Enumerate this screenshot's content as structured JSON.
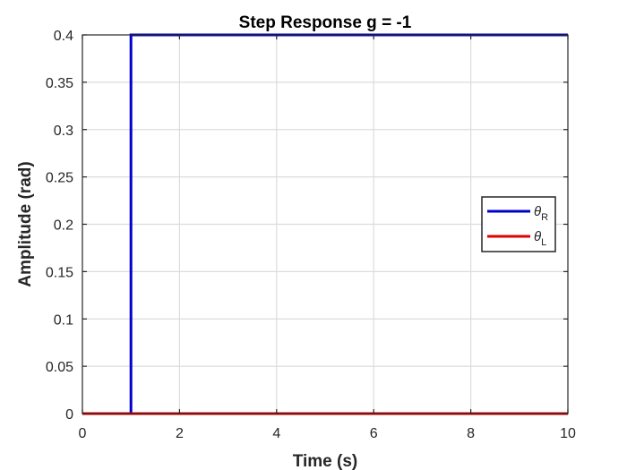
{
  "chart_data": {
    "type": "line",
    "title": "Step Response g = -1",
    "xlabel": "Time (s)",
    "ylabel": "Amplitude (rad)",
    "xlim": [
      0,
      10
    ],
    "ylim": [
      0,
      0.4
    ],
    "xticks": [
      0,
      2,
      4,
      6,
      8,
      10
    ],
    "xtick_labels": [
      "0",
      "2",
      "4",
      "6",
      "8",
      "10"
    ],
    "yticks": [
      0,
      0.05,
      0.1,
      0.15,
      0.2,
      0.25,
      0.3,
      0.35,
      0.4
    ],
    "ytick_labels": [
      "0",
      "0.05",
      "0.1",
      "0.15",
      "0.2",
      "0.25",
      "0.3",
      "0.35",
      "0.4"
    ],
    "grid": true,
    "legend_position": "right",
    "series": [
      {
        "name": "θR",
        "symbol": "θ",
        "subscript": "R",
        "color": "#0000cd",
        "x": [
          0,
          1,
          1,
          10
        ],
        "y": [
          0,
          0,
          0.4,
          0.4
        ]
      },
      {
        "name": "θL",
        "symbol": "θ",
        "subscript": "L",
        "color": "#e00000",
        "x": [
          0,
          10
        ],
        "y": [
          0,
          0
        ]
      }
    ]
  }
}
